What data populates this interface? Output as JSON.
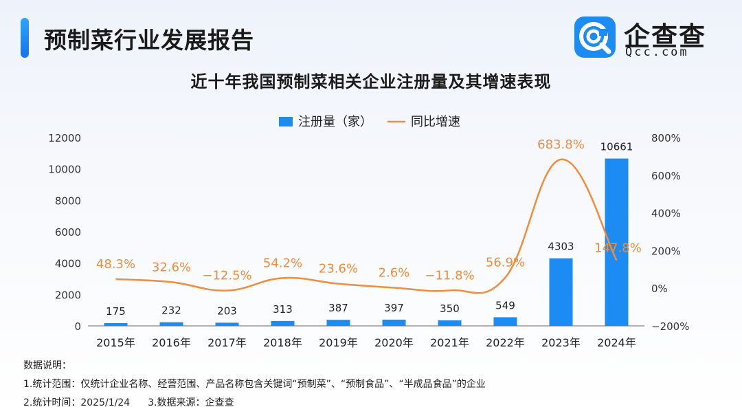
{
  "header": {
    "title": "预制菜行业发展报告",
    "logo_text": "企查查",
    "logo_sub": "Qcc.com",
    "accent": "#1c8cf2"
  },
  "chart_data": {
    "type": "bar+line",
    "title": "近十年我国预制菜相关企业注册量及其增速表现",
    "categories": [
      "2015年",
      "2016年",
      "2017年",
      "2018年",
      "2019年",
      "2020年",
      "2021年",
      "2022年",
      "2023年",
      "2024年"
    ],
    "series": [
      {
        "name": "注册量（家）",
        "type": "bar",
        "axis": "left",
        "color": "#1c8cf2",
        "values": [
          175,
          232,
          203,
          313,
          387,
          397,
          350,
          549,
          4303,
          10661
        ],
        "labels": [
          "175",
          "232",
          "203",
          "313",
          "387",
          "397",
          "350",
          "549",
          "4303",
          "10661"
        ]
      },
      {
        "name": "同比增速",
        "type": "line",
        "axis": "right",
        "color": "#f08c3c",
        "values": [
          48.3,
          32.6,
          -12.5,
          54.2,
          23.6,
          2.6,
          -11.8,
          56.9,
          683.8,
          147.8
        ],
        "labels": [
          "48.3%",
          "32.6%",
          "−12.5%",
          "54.2%",
          "23.6%",
          "2.6%",
          "−11.8%",
          "56.9%",
          "683.8%",
          "147.8%"
        ]
      }
    ],
    "y_left": {
      "lim": [
        0,
        12000
      ],
      "ticks": [
        "0",
        "2000",
        "4000",
        "6000",
        "8000",
        "10000",
        "12000"
      ]
    },
    "y_right": {
      "lim": [
        -200,
        800
      ],
      "ticks": [
        "−200%",
        "0%",
        "200%",
        "400%",
        "600%",
        "800%"
      ]
    },
    "grid": false,
    "legend_placement": "top-center"
  },
  "notes": {
    "heading": "数据说明：",
    "scope": "1.统计范围：仅统计企业名称、经营范围、产品名称包含关键词“预制菜”、“预制食品”、“半成品食品”的企业",
    "time": "2.统计时间：2025/1/24",
    "source": "3.数据来源：企查查"
  }
}
